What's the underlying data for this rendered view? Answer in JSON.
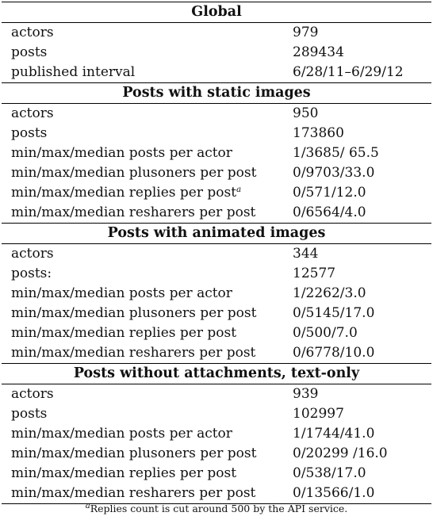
{
  "table": {
    "sections": [
      {
        "title": "Global",
        "rows": [
          {
            "label": "actors",
            "value": "979"
          },
          {
            "label": "posts",
            "value": "289434"
          },
          {
            "label": "published interval",
            "value": "6/28/11–6/29/12"
          }
        ]
      },
      {
        "title": "Posts with static images",
        "rows": [
          {
            "label": "actors",
            "value": "950"
          },
          {
            "label": "posts",
            "value": "173860"
          },
          {
            "label": "min/max/median posts per actor",
            "value": "1/3685/ 65.5"
          },
          {
            "label": "min/max/median plusoners per post",
            "value": "0/9703/33.0"
          },
          {
            "label": "min/max/median replies per post",
            "label_sup": "a",
            "value": "0/571/12.0"
          },
          {
            "label": "min/max/median resharers per post",
            "value": "0/6564/4.0"
          }
        ]
      },
      {
        "title": "Posts with animated images",
        "rows": [
          {
            "label": "actors",
            "value": "344"
          },
          {
            "label": "posts:",
            "value": "12577"
          },
          {
            "label": "min/max/median posts per actor",
            "value": "1/2262/3.0"
          },
          {
            "label": "min/max/median plusoners per post",
            "value": "0/5145/17.0"
          },
          {
            "label": "min/max/median replies per post",
            "value": "0/500/7.0"
          },
          {
            "label": "min/max/median resharers per post",
            "value": "0/6778/10.0"
          }
        ]
      },
      {
        "title": "Posts without attachments, text-only",
        "rows": [
          {
            "label": "actors",
            "value": "939"
          },
          {
            "label": "posts",
            "value": "102997"
          },
          {
            "label": "min/max/median posts per actor",
            "value": "1/1744/41.0"
          },
          {
            "label": "min/max/median plusoners per post",
            "value": "0/20299 /16.0"
          },
          {
            "label": "min/max/median replies per post",
            "value": "0/538/17.0"
          },
          {
            "label": "min/max/median resharers per post",
            "value": "0/13566/1.0"
          }
        ]
      }
    ]
  },
  "footnote": {
    "mark": "a",
    "text": "Replies count is cut around 500 by the API service."
  }
}
